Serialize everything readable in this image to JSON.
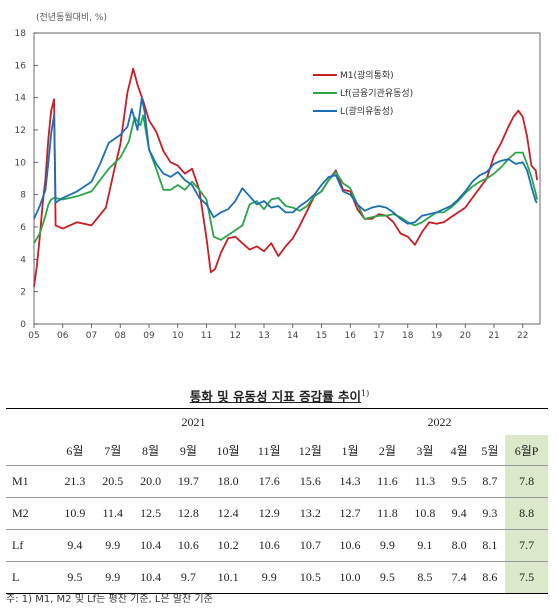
{
  "chart_data": {
    "type": "line",
    "unit_label": "(전년동월대비, %)",
    "yticks": [
      "0",
      "2",
      "4",
      "6",
      "8",
      "10",
      "12",
      "14",
      "16",
      "18"
    ],
    "ylim": [
      0,
      18
    ],
    "xticks": [
      "05",
      "06",
      "07",
      "08",
      "09",
      "10",
      "11",
      "12",
      "13",
      "14",
      "15",
      "16",
      "17",
      "18",
      "19",
      "20",
      "21",
      "22"
    ],
    "legend_position": "top-right",
    "series": [
      {
        "name": "M1(광의통화)",
        "color": "#cc1b23",
        "points": [
          [
            2005.0,
            2.3
          ],
          [
            2005.1,
            3.6
          ],
          [
            2005.2,
            5.4
          ],
          [
            2005.3,
            7.4
          ],
          [
            2005.4,
            9.0
          ],
          [
            2005.5,
            11.5
          ],
          [
            2005.6,
            13.2
          ],
          [
            2005.7,
            13.9
          ],
          [
            2005.75,
            6.1
          ],
          [
            2006.0,
            5.9
          ],
          [
            2006.5,
            6.3
          ],
          [
            2007.0,
            6.1
          ],
          [
            2007.5,
            7.2
          ],
          [
            2007.8,
            9.6
          ],
          [
            2008.0,
            11.1
          ],
          [
            2008.25,
            14.3
          ],
          [
            2008.45,
            15.8
          ],
          [
            2008.6,
            14.8
          ],
          [
            2008.8,
            13.8
          ],
          [
            2009.0,
            12.6
          ],
          [
            2009.25,
            11.9
          ],
          [
            2009.5,
            10.7
          ],
          [
            2009.75,
            10.0
          ],
          [
            2010.0,
            9.8
          ],
          [
            2010.25,
            9.3
          ],
          [
            2010.5,
            9.6
          ],
          [
            2010.75,
            8.3
          ],
          [
            2011.0,
            5.3
          ],
          [
            2011.15,
            3.2
          ],
          [
            2011.3,
            3.4
          ],
          [
            2011.5,
            4.4
          ],
          [
            2011.75,
            5.3
          ],
          [
            2012.0,
            5.4
          ],
          [
            2012.25,
            5.0
          ],
          [
            2012.5,
            4.6
          ],
          [
            2012.75,
            4.8
          ],
          [
            2013.0,
            4.5
          ],
          [
            2013.25,
            5.0
          ],
          [
            2013.5,
            4.2
          ],
          [
            2013.75,
            4.8
          ],
          [
            2014.0,
            5.3
          ],
          [
            2014.25,
            6.1
          ],
          [
            2014.5,
            7.0
          ],
          [
            2014.75,
            7.9
          ],
          [
            2015.0,
            8.2
          ],
          [
            2015.25,
            8.9
          ],
          [
            2015.5,
            9.5
          ],
          [
            2015.75,
            8.3
          ],
          [
            2016.0,
            8.2
          ],
          [
            2016.25,
            7.1
          ],
          [
            2016.5,
            6.5
          ],
          [
            2016.75,
            6.5
          ],
          [
            2017.0,
            6.8
          ],
          [
            2017.25,
            6.7
          ],
          [
            2017.5,
            6.3
          ],
          [
            2017.75,
            5.6
          ],
          [
            2018.0,
            5.4
          ],
          [
            2018.25,
            4.9
          ],
          [
            2018.5,
            5.7
          ],
          [
            2018.75,
            6.3
          ],
          [
            2019.0,
            6.2
          ],
          [
            2019.25,
            6.3
          ],
          [
            2019.5,
            6.6
          ],
          [
            2019.75,
            6.9
          ],
          [
            2020.0,
            7.2
          ],
          [
            2020.25,
            7.8
          ],
          [
            2020.5,
            8.4
          ],
          [
            2020.75,
            9.0
          ],
          [
            2021.0,
            10.4
          ],
          [
            2021.25,
            11.2
          ],
          [
            2021.5,
            12.2
          ],
          [
            2021.67,
            12.8
          ],
          [
            2021.85,
            13.2
          ],
          [
            2022.0,
            12.8
          ],
          [
            2022.15,
            11.6
          ],
          [
            2022.3,
            9.8
          ],
          [
            2022.45,
            9.5
          ],
          [
            2022.5,
            8.9
          ]
        ]
      },
      {
        "name": "Lf(금융기관유동성)",
        "color": "#2aa64a",
        "points": [
          [
            2005.0,
            5.0
          ],
          [
            2005.2,
            5.6
          ],
          [
            2005.4,
            6.7
          ],
          [
            2005.5,
            7.4
          ],
          [
            2005.6,
            7.7
          ],
          [
            2005.7,
            7.8
          ],
          [
            2006.0,
            7.7
          ],
          [
            2006.5,
            7.9
          ],
          [
            2007.0,
            8.2
          ],
          [
            2007.3,
            8.9
          ],
          [
            2007.6,
            9.6
          ],
          [
            2008.0,
            10.3
          ],
          [
            2008.3,
            11.3
          ],
          [
            2008.5,
            12.8
          ],
          [
            2008.7,
            12.3
          ],
          [
            2008.8,
            12.9
          ],
          [
            2009.0,
            10.8
          ],
          [
            2009.25,
            9.6
          ],
          [
            2009.5,
            8.3
          ],
          [
            2009.75,
            8.3
          ],
          [
            2010.0,
            8.6
          ],
          [
            2010.25,
            8.3
          ],
          [
            2010.5,
            8.8
          ],
          [
            2010.75,
            8.3
          ],
          [
            2011.0,
            7.7
          ],
          [
            2011.25,
            5.4
          ],
          [
            2011.5,
            5.2
          ],
          [
            2011.75,
            5.5
          ],
          [
            2012.0,
            5.8
          ],
          [
            2012.25,
            6.1
          ],
          [
            2012.5,
            7.4
          ],
          [
            2012.75,
            7.6
          ],
          [
            2013.0,
            7.1
          ],
          [
            2013.25,
            7.7
          ],
          [
            2013.5,
            7.8
          ],
          [
            2013.75,
            7.3
          ],
          [
            2014.0,
            7.2
          ],
          [
            2014.25,
            7.0
          ],
          [
            2014.5,
            7.3
          ],
          [
            2014.75,
            7.9
          ],
          [
            2015.0,
            8.2
          ],
          [
            2015.25,
            8.9
          ],
          [
            2015.5,
            9.4
          ],
          [
            2015.75,
            8.7
          ],
          [
            2016.0,
            8.4
          ],
          [
            2016.25,
            7.4
          ],
          [
            2016.5,
            6.5
          ],
          [
            2016.75,
            6.6
          ],
          [
            2017.0,
            6.7
          ],
          [
            2017.25,
            6.7
          ],
          [
            2017.5,
            6.8
          ],
          [
            2017.75,
            6.6
          ],
          [
            2018.0,
            6.3
          ],
          [
            2018.25,
            6.1
          ],
          [
            2018.5,
            6.3
          ],
          [
            2018.75,
            6.6
          ],
          [
            2019.0,
            6.9
          ],
          [
            2019.25,
            6.9
          ],
          [
            2019.5,
            7.2
          ],
          [
            2019.75,
            7.6
          ],
          [
            2020.0,
            8.1
          ],
          [
            2020.25,
            8.5
          ],
          [
            2020.5,
            8.8
          ],
          [
            2020.75,
            9.0
          ],
          [
            2021.0,
            9.3
          ],
          [
            2021.25,
            9.7
          ],
          [
            2021.5,
            10.2
          ],
          [
            2021.75,
            10.6
          ],
          [
            2022.0,
            10.6
          ],
          [
            2022.15,
            9.9
          ],
          [
            2022.3,
            9.1
          ],
          [
            2022.45,
            8.1
          ],
          [
            2022.5,
            7.7
          ]
        ]
      },
      {
        "name": "L(광의유동성)",
        "color": "#1a6fb6",
        "points": [
          [
            2005.0,
            6.5
          ],
          [
            2005.2,
            7.3
          ],
          [
            2005.4,
            8.3
          ],
          [
            2005.5,
            10.0
          ],
          [
            2005.6,
            11.8
          ],
          [
            2005.7,
            12.9
          ],
          [
            2005.75,
            7.5
          ],
          [
            2006.0,
            7.8
          ],
          [
            2006.5,
            8.2
          ],
          [
            2007.0,
            8.8
          ],
          [
            2007.3,
            9.9
          ],
          [
            2007.6,
            11.2
          ],
          [
            2008.0,
            11.7
          ],
          [
            2008.25,
            12.2
          ],
          [
            2008.4,
            13.3
          ],
          [
            2008.6,
            12.0
          ],
          [
            2008.75,
            14.0
          ],
          [
            2008.85,
            13.1
          ],
          [
            2009.0,
            10.8
          ],
          [
            2009.25,
            9.9
          ],
          [
            2009.5,
            9.3
          ],
          [
            2009.75,
            9.1
          ],
          [
            2010.0,
            9.4
          ],
          [
            2010.25,
            8.9
          ],
          [
            2010.5,
            8.6
          ],
          [
            2010.75,
            7.8
          ],
          [
            2011.0,
            7.4
          ],
          [
            2011.25,
            6.6
          ],
          [
            2011.5,
            6.9
          ],
          [
            2011.75,
            7.1
          ],
          [
            2012.0,
            7.6
          ],
          [
            2012.25,
            8.4
          ],
          [
            2012.5,
            7.9
          ],
          [
            2012.75,
            7.4
          ],
          [
            2013.0,
            7.6
          ],
          [
            2013.25,
            7.2
          ],
          [
            2013.5,
            7.3
          ],
          [
            2013.75,
            6.9
          ],
          [
            2014.0,
            6.9
          ],
          [
            2014.25,
            7.3
          ],
          [
            2014.5,
            7.6
          ],
          [
            2014.75,
            8.0
          ],
          [
            2015.0,
            8.6
          ],
          [
            2015.25,
            9.1
          ],
          [
            2015.5,
            9.2
          ],
          [
            2015.75,
            8.2
          ],
          [
            2016.0,
            8.0
          ],
          [
            2016.25,
            7.4
          ],
          [
            2016.5,
            7.0
          ],
          [
            2016.75,
            7.2
          ],
          [
            2017.0,
            7.3
          ],
          [
            2017.25,
            7.2
          ],
          [
            2017.5,
            6.9
          ],
          [
            2017.75,
            6.5
          ],
          [
            2018.0,
            6.2
          ],
          [
            2018.25,
            6.3
          ],
          [
            2018.5,
            6.7
          ],
          [
            2018.75,
            6.8
          ],
          [
            2019.0,
            6.9
          ],
          [
            2019.25,
            7.1
          ],
          [
            2019.5,
            7.3
          ],
          [
            2019.75,
            7.7
          ],
          [
            2020.0,
            8.2
          ],
          [
            2020.25,
            8.8
          ],
          [
            2020.5,
            9.2
          ],
          [
            2020.75,
            9.4
          ],
          [
            2021.0,
            9.9
          ],
          [
            2021.25,
            10.1
          ],
          [
            2021.5,
            10.2
          ],
          [
            2021.75,
            9.9
          ],
          [
            2022.0,
            10.0
          ],
          [
            2022.15,
            9.5
          ],
          [
            2022.3,
            8.5
          ],
          [
            2022.45,
            7.6
          ],
          [
            2022.5,
            7.5
          ]
        ]
      }
    ]
  },
  "table": {
    "title": "통화 및 유동성 지표 증감률 추이",
    "title_sup": "1)",
    "years": [
      "2021",
      "2022"
    ],
    "months": [
      "6월",
      "7월",
      "8월",
      "9월",
      "10월",
      "11월",
      "12월",
      "1월",
      "2월",
      "3월",
      "4월",
      "5월",
      "6월P"
    ],
    "rows": [
      {
        "label": "M1",
        "values": [
          "21.3",
          "20.5",
          "20.0",
          "19.7",
          "18.0",
          "17.6",
          "15.6",
          "14.3",
          "11.6",
          "11.3",
          "9.5",
          "8.7",
          "7.8"
        ]
      },
      {
        "label": "M2",
        "values": [
          "10.9",
          "11.4",
          "12.5",
          "12.8",
          "12.4",
          "12.9",
          "13.2",
          "12.7",
          "11.8",
          "10.8",
          "9.4",
          "9.3",
          "8.8"
        ]
      },
      {
        "label": "Lf",
        "values": [
          "9.4",
          "9.9",
          "10.4",
          "10.6",
          "10.2",
          "10.6",
          "10.7",
          "10.6",
          "9.9",
          "9.1",
          "8.0",
          "8.1",
          "7.7"
        ]
      },
      {
        "label": "L",
        "values": [
          "9.5",
          "9.9",
          "10.4",
          "9.7",
          "10.1",
          "9.9",
          "10.5",
          "10.0",
          "9.5",
          "8.5",
          "7.4",
          "8.6",
          "7.5"
        ]
      }
    ]
  },
  "note": "주: 1) M1, M2 및 Lf는 평잔 기준, L은 말잔 기준"
}
